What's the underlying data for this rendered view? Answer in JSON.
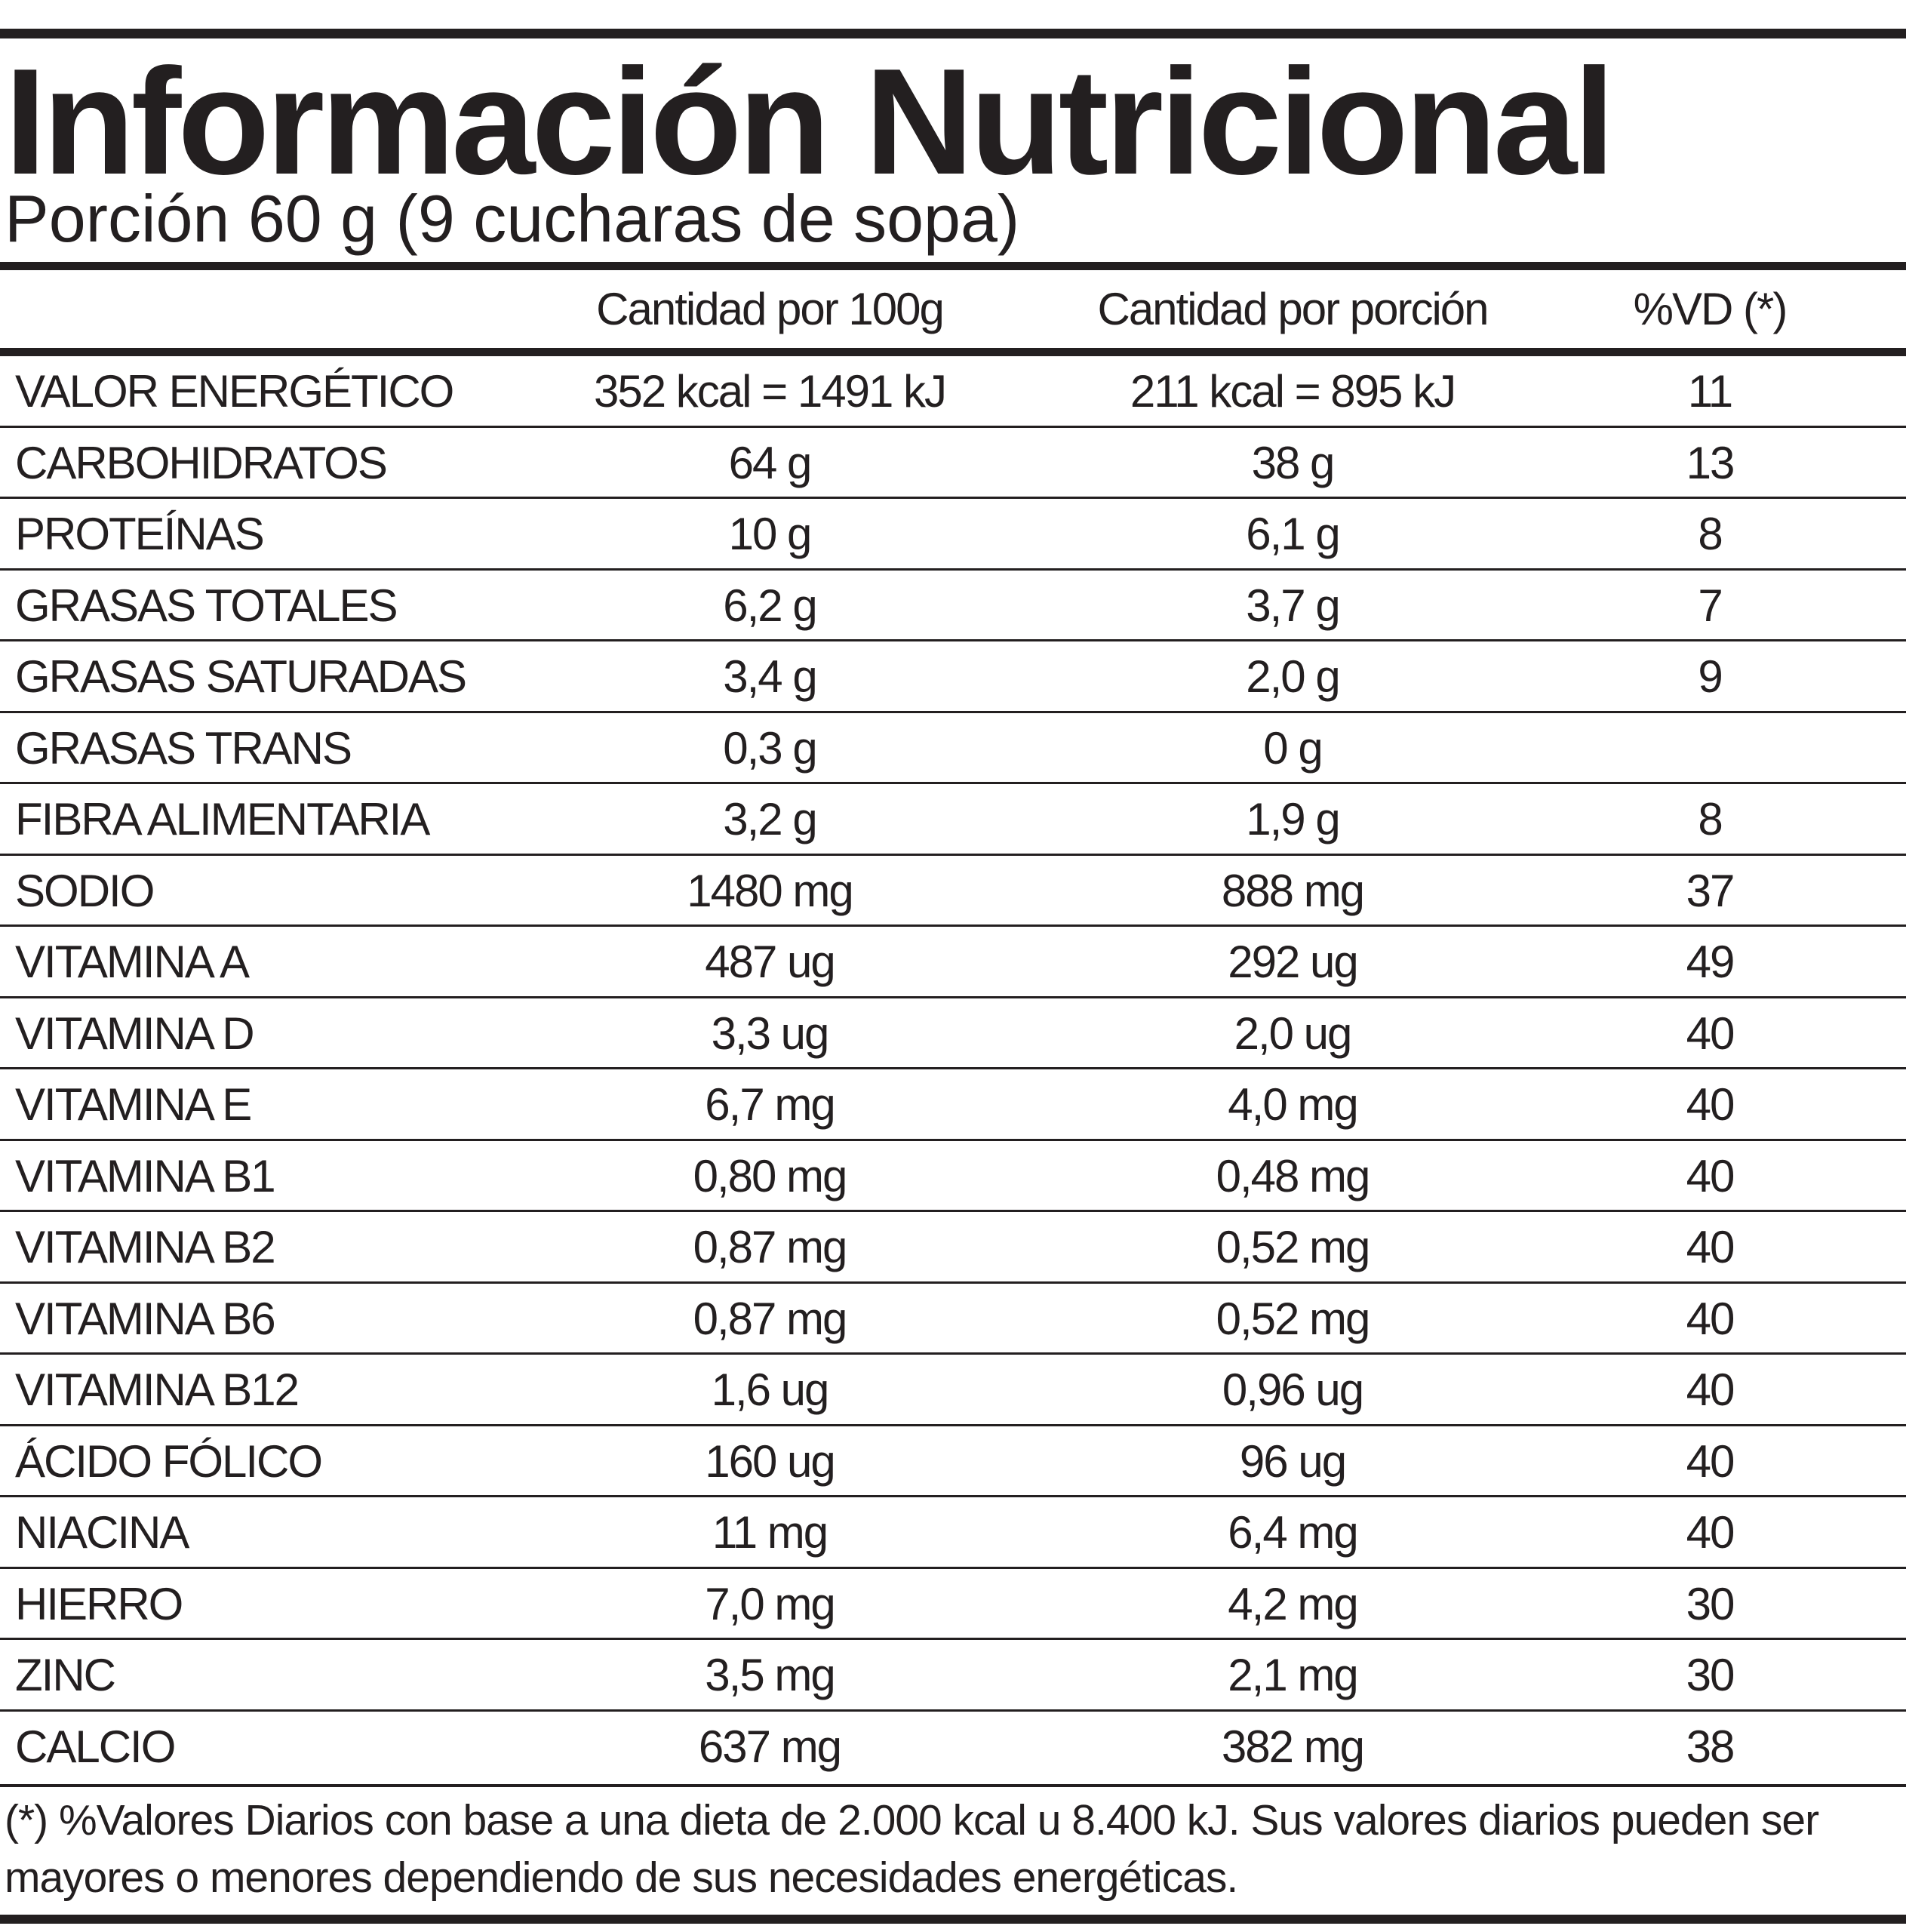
{
  "title": "Información Nutricional",
  "subtitle": "Porción 60 g (9 cucharas de sopa)",
  "columns": {
    "per100": "Cantidad por 100g",
    "perPortion": "Cantidad por porción",
    "vd": "%VD (*)"
  },
  "rows": [
    {
      "name": "VALOR ENERGÉTICO",
      "per100": "352 kcal = 1491 kJ",
      "perPortion": "211 kcal = 895 kJ",
      "vd": "11"
    },
    {
      "name": "CARBOHIDRATOS",
      "per100": "64 g",
      "perPortion": "38 g",
      "vd": "13"
    },
    {
      "name": "PROTEÍNAS",
      "per100": "10 g",
      "perPortion": "6,1 g",
      "vd": "8"
    },
    {
      "name": "GRASAS TOTALES",
      "per100": "6,2 g",
      "perPortion": "3,7 g",
      "vd": "7"
    },
    {
      "name": "GRASAS SATURADAS",
      "per100": "3,4 g",
      "perPortion": "2,0 g",
      "vd": "9"
    },
    {
      "name": "GRASAS TRANS",
      "per100": "0,3 g",
      "perPortion": "0 g",
      "vd": ""
    },
    {
      "name": "FIBRA ALIMENTARIA",
      "per100": "3,2 g",
      "perPortion": "1,9 g",
      "vd": "8"
    },
    {
      "name": "SODIO",
      "per100": "1480 mg",
      "perPortion": "888 mg",
      "vd": "37"
    },
    {
      "name": "VITAMINA A",
      "per100": "487 ug",
      "perPortion": "292 ug",
      "vd": "49"
    },
    {
      "name": "VITAMINA D",
      "per100": "3,3 ug",
      "perPortion": "2,0 ug",
      "vd": "40"
    },
    {
      "name": "VITAMINA E",
      "per100": "6,7 mg",
      "perPortion": "4,0 mg",
      "vd": "40"
    },
    {
      "name": "VITAMINA B1",
      "per100": "0,80 mg",
      "perPortion": "0,48 mg",
      "vd": "40"
    },
    {
      "name": "VITAMINA B2",
      "per100": "0,87 mg",
      "perPortion": "0,52 mg",
      "vd": "40"
    },
    {
      "name": "VITAMINA B6",
      "per100": "0,87 mg",
      "perPortion": "0,52 mg",
      "vd": "40"
    },
    {
      "name": "VITAMINA B12",
      "per100": "1,6 ug",
      "perPortion": "0,96 ug",
      "vd": "40"
    },
    {
      "name": "ÁCIDO FÓLICO",
      "per100": "160 ug",
      "perPortion": "96 ug",
      "vd": "40"
    },
    {
      "name": "NIACINA",
      "per100": "11 mg",
      "perPortion": "6,4 mg",
      "vd": "40"
    },
    {
      "name": "HIERRO",
      "per100": "7,0 mg",
      "perPortion": "4,2 mg",
      "vd": "30"
    },
    {
      "name": "ZINC",
      "per100": "3,5 mg",
      "perPortion": "2,1 mg",
      "vd": "30"
    },
    {
      "name": "CALCIO",
      "per100": "637 mg",
      "perPortion": "382 mg",
      "vd": "38"
    }
  ],
  "footnote": "(*) %Valores Diarios con base a una dieta de 2.000 kcal u 8.400 kJ. Sus valores diarios pueden ser mayores o menores dependiendo de sus necesidades energéticas.",
  "colors": {
    "ink": "#231f20",
    "background": "#ffffff"
  }
}
